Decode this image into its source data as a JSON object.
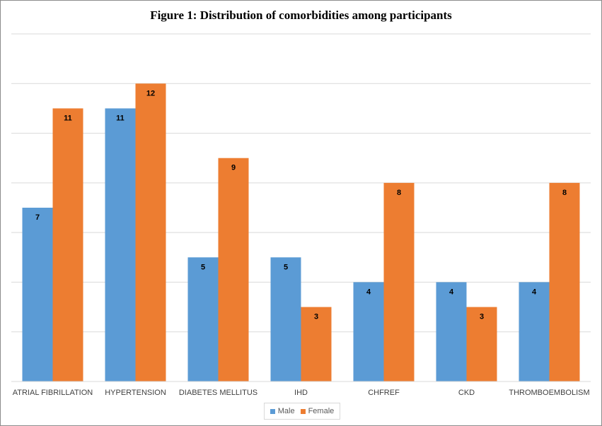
{
  "chart_data": {
    "type": "bar",
    "title": "Figure 1: Distribution of comorbidities among participants",
    "xlabel": "",
    "ylabel": "",
    "categories": [
      "ATRIAL FIBRILLATION",
      "HYPERTENSION",
      "DIABETES MELLITUS",
      "IHD",
      "CHFREF",
      "CKD",
      "THROMBOEMBOLISM"
    ],
    "series": [
      {
        "name": "Male",
        "color": "#5b9bd5",
        "values": [
          7,
          11,
          5,
          5,
          4,
          4,
          4
        ]
      },
      {
        "name": "Female",
        "color": "#ed7d31",
        "values": [
          11,
          12,
          9,
          3,
          8,
          3,
          8
        ]
      }
    ],
    "ylim": [
      0,
      14
    ],
    "grid": true,
    "legend_position": "bottom"
  }
}
